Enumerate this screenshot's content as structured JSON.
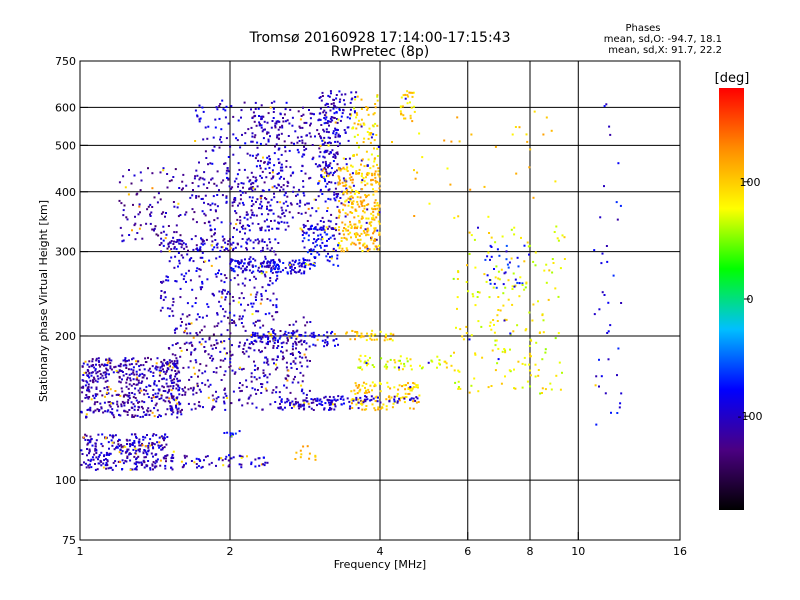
{
  "chart_data": {
    "type": "scatter",
    "title": "Tromsø 20160928 17:14:00-17:15:43",
    "subtitle": "RwPretec (8p)",
    "xlabel": "Frequency [MHz]",
    "ylabel": "Stationary phase Virtual Height [km]",
    "x_scale": "log",
    "y_scale": "log",
    "xlim": [
      1,
      16
    ],
    "ylim": [
      75,
      750
    ],
    "x_ticks": [
      1,
      2,
      4,
      6,
      8,
      10,
      16
    ],
    "y_ticks": [
      75,
      100,
      200,
      300,
      400,
      500,
      600,
      750
    ],
    "grid": true,
    "phase_box": {
      "title": "Phases",
      "line_o": "mean, sd,O: -94.7, 18.1",
      "line_x": "mean, sd,X:  91.7, 22.2"
    },
    "colorbar": {
      "label": "[deg]",
      "range": [
        -180,
        180
      ],
      "ticks": [
        100,
        0,
        -100
      ],
      "colormap": [
        "#000000",
        "#4b0082",
        "#0000ff",
        "#00bfff",
        "#00ff00",
        "#ffff00",
        "#ff8c00",
        "#ff0000"
      ]
    },
    "clusters": [
      {
        "x": [
          1.0,
          1.55
        ],
        "y": [
          105,
          115
        ],
        "phase": -105,
        "n": 160,
        "density": "dense"
      },
      {
        "x": [
          1.6,
          2.4
        ],
        "y": [
          106,
          113
        ],
        "phase": -100,
        "n": 60,
        "density": "sparse"
      },
      {
        "x": [
          1.0,
          1.5
        ],
        "y": [
          115,
          125
        ],
        "phase": -105,
        "n": 150,
        "density": "dense"
      },
      {
        "x": [
          1.0,
          1.6
        ],
        "y": [
          135,
          180
        ],
        "phase": -110,
        "n": 500,
        "density": "dense"
      },
      {
        "x": [
          1.5,
          2.9
        ],
        "y": [
          140,
          220
        ],
        "phase": -110,
        "n": 450,
        "density": "dense"
      },
      {
        "x": [
          1.45,
          2.5
        ],
        "y": [
          220,
          320
        ],
        "phase": -100,
        "n": 250,
        "density": "dense"
      },
      {
        "x": [
          1.2,
          2.2
        ],
        "y": [
          300,
          450
        ],
        "phase": -115,
        "n": 200,
        "density": "sparse"
      },
      {
        "x": [
          1.7,
          2.6
        ],
        "y": [
          300,
          620
        ],
        "phase": -100,
        "n": 250,
        "density": "dense"
      },
      {
        "x": [
          2.2,
          3.3
        ],
        "y": [
          330,
          600
        ],
        "phase": -105,
        "n": 350,
        "density": "dense"
      },
      {
        "x": [
          2.0,
          2.9
        ],
        "y": [
          270,
          290
        ],
        "phase": -90,
        "n": 150,
        "density": "dense"
      },
      {
        "x": [
          2.8,
          3.3
        ],
        "y": [
          280,
          340
        ],
        "phase": -85,
        "n": 100,
        "density": "dense"
      },
      {
        "x": [
          3.0,
          3.5
        ],
        "y": [
          380,
          580
        ],
        "phase": -95,
        "n": 120,
        "density": "dense"
      },
      {
        "x": [
          3.0,
          3.6
        ],
        "y": [
          580,
          650
        ],
        "phase": -100,
        "n": 50,
        "density": "dense"
      },
      {
        "x": [
          2.2,
          3.3
        ],
        "y": [
          190,
          205
        ],
        "phase": -90,
        "n": 90,
        "density": "sparse"
      },
      {
        "x": [
          2.5,
          3.5
        ],
        "y": [
          140,
          148
        ],
        "phase": -100,
        "n": 80,
        "density": "dense"
      },
      {
        "x": [
          3.3,
          4.0
        ],
        "y": [
          300,
          450
        ],
        "phase": 105,
        "n": 300,
        "density": "dense"
      },
      {
        "x": [
          3.5,
          4.0
        ],
        "y": [
          450,
          640
        ],
        "phase": 90,
        "n": 80,
        "density": "sparse"
      },
      {
        "x": [
          4.4,
          4.7
        ],
        "y": [
          560,
          650
        ],
        "phase": 95,
        "n": 30,
        "density": "dense"
      },
      {
        "x": [
          3.4,
          4.3
        ],
        "y": [
          195,
          205
        ],
        "phase": 100,
        "n": 40,
        "density": "dense"
      },
      {
        "x": [
          3.5,
          4.8
        ],
        "y": [
          140,
          160
        ],
        "phase": 100,
        "n": 120,
        "density": "dense"
      },
      {
        "x": [
          3.6,
          5.6
        ],
        "y": [
          170,
          182
        ],
        "phase": 80,
        "n": 60,
        "density": "dense"
      },
      {
        "x": [
          3.0,
          4.8
        ],
        "y": [
          145,
          150
        ],
        "phase": -95,
        "n": 50,
        "density": "dense"
      },
      {
        "x": [
          5.6,
          9.4
        ],
        "y": [
          150,
          340
        ],
        "phase": 80,
        "n": 200,
        "density": "sparse"
      },
      {
        "x": [
          6.5,
          8.0
        ],
        "y": [
          250,
          310
        ],
        "phase": -80,
        "n": 30,
        "density": "sparse"
      },
      {
        "x": [
          4.2,
          9.0
        ],
        "y": [
          350,
          600
        ],
        "phase": 100,
        "n": 35,
        "density": "sparse"
      },
      {
        "x": [
          10.7,
          12.2
        ],
        "y": [
          130,
          620
        ],
        "phase": -90,
        "n": 40,
        "density": "sparse"
      },
      {
        "x": [
          2.7,
          3.0
        ],
        "y": [
          110,
          118
        ],
        "phase": 110,
        "n": 12,
        "density": "dense"
      },
      {
        "x": [
          1.9,
          2.1
        ],
        "y": [
          123,
          127
        ],
        "phase": -60,
        "n": 10,
        "density": "dense"
      }
    ]
  }
}
